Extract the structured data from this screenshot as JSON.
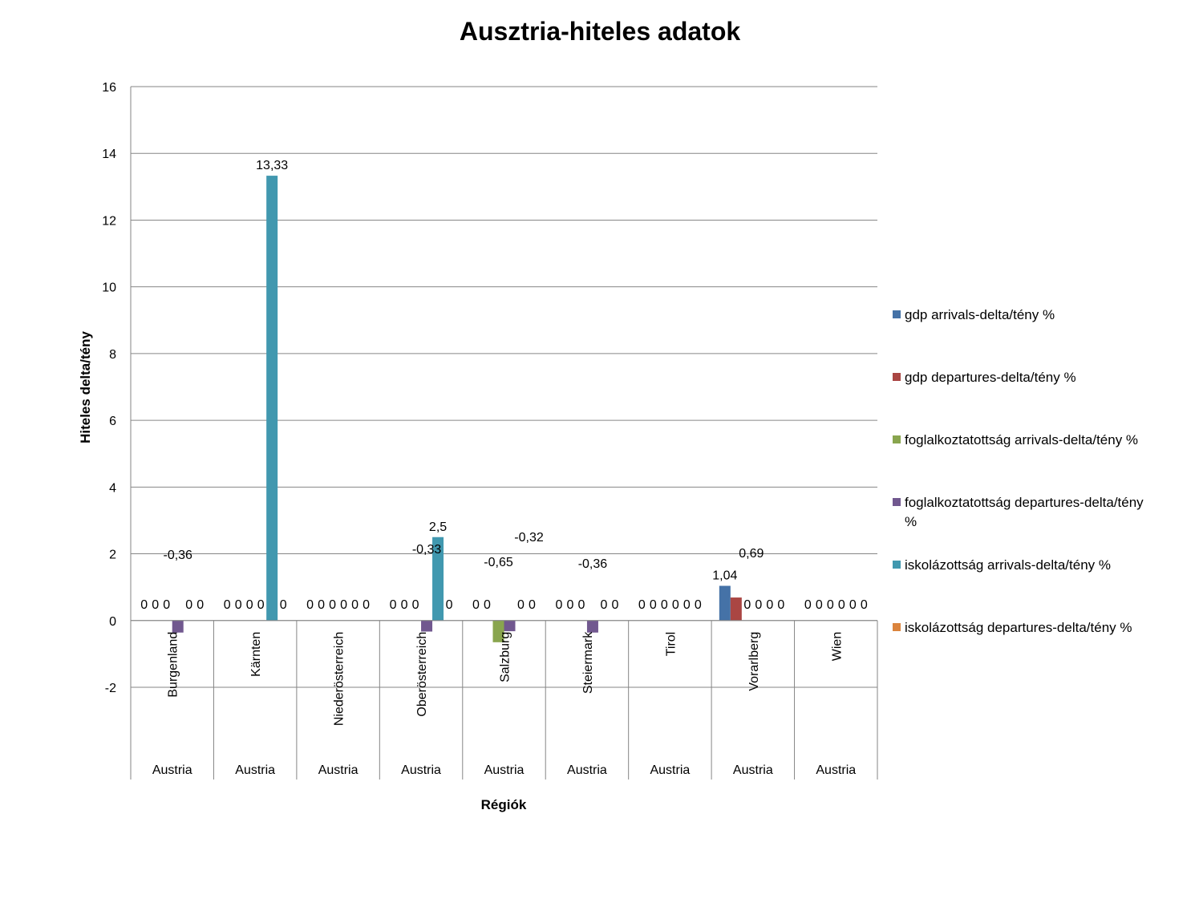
{
  "chart_data": {
    "type": "bar",
    "title": "Ausztria-hiteles adatok",
    "xlabel": "Régiók",
    "ylabel": "Hiteles delta/tény",
    "ylim": [
      -2,
      16
    ],
    "yticks": [
      -2,
      0,
      2,
      4,
      6,
      8,
      10,
      12,
      14,
      16
    ],
    "grid": true,
    "legend_position": "right",
    "categories": [
      "Burgenland",
      "Kärnten",
      "Niederösterreich",
      "Oberösterreich",
      "Salzburg",
      "Steiermark",
      "Tirol",
      "Vorarlberg",
      "Wien"
    ],
    "group_label": "Austria",
    "group_labels": [
      "Austria",
      "Austria",
      "Austria",
      "Austria",
      "Austria",
      "Austria",
      "Austria",
      "Austria",
      "Austria"
    ],
    "series": [
      {
        "name": "gdp arrivals-delta/tény %",
        "color": "#4572A7",
        "values": [
          0,
          0,
          0,
          0,
          0,
          0,
          0,
          1.04,
          0
        ],
        "labels": [
          "0",
          "0",
          "0",
          "0",
          "0",
          "0",
          "0",
          "1,04",
          "0"
        ]
      },
      {
        "name": "gdp departures-delta/tény %",
        "color": "#AA4643",
        "values": [
          0,
          0,
          0,
          0,
          0,
          0,
          0,
          0.69,
          0
        ],
        "labels": [
          "0",
          "0",
          "0",
          "0",
          "0",
          "0",
          "0",
          "0,69",
          "0"
        ]
      },
      {
        "name": "foglalkoztatottság arrivals-delta/tény %",
        "color": "#89A54E",
        "values": [
          0,
          0,
          0,
          0,
          -0.65,
          0,
          0,
          0,
          0
        ],
        "labels": [
          "0",
          "0",
          "0",
          "0",
          "-0,65",
          "0",
          "0",
          "0",
          "0"
        ]
      },
      {
        "name": "foglalkoztatottság departures-delta/tény %",
        "color": "#71588F",
        "values": [
          -0.36,
          0,
          0,
          -0.33,
          -0.32,
          -0.36,
          0,
          0,
          0
        ],
        "labels": [
          "-0,36",
          "0",
          "0",
          "-0,33",
          "-0,32",
          "-0,36",
          "0",
          "0",
          "0"
        ]
      },
      {
        "name": "iskolázottság arrivals-delta/tény %",
        "color": "#4198AF",
        "values": [
          0,
          13.33,
          0,
          2.5,
          0,
          0,
          0,
          0,
          0
        ],
        "labels": [
          "0",
          "13,33",
          "0",
          "2,5",
          "0",
          "0",
          "0",
          "0",
          "0"
        ]
      },
      {
        "name": "iskolázottság departures-delta/tény %",
        "color": "#DB843D",
        "values": [
          0,
          0,
          0,
          0,
          0,
          0,
          0,
          0,
          0
        ],
        "labels": [
          "0",
          "0",
          "0",
          "0",
          "0",
          "0",
          "0",
          "0",
          "0"
        ]
      }
    ]
  }
}
